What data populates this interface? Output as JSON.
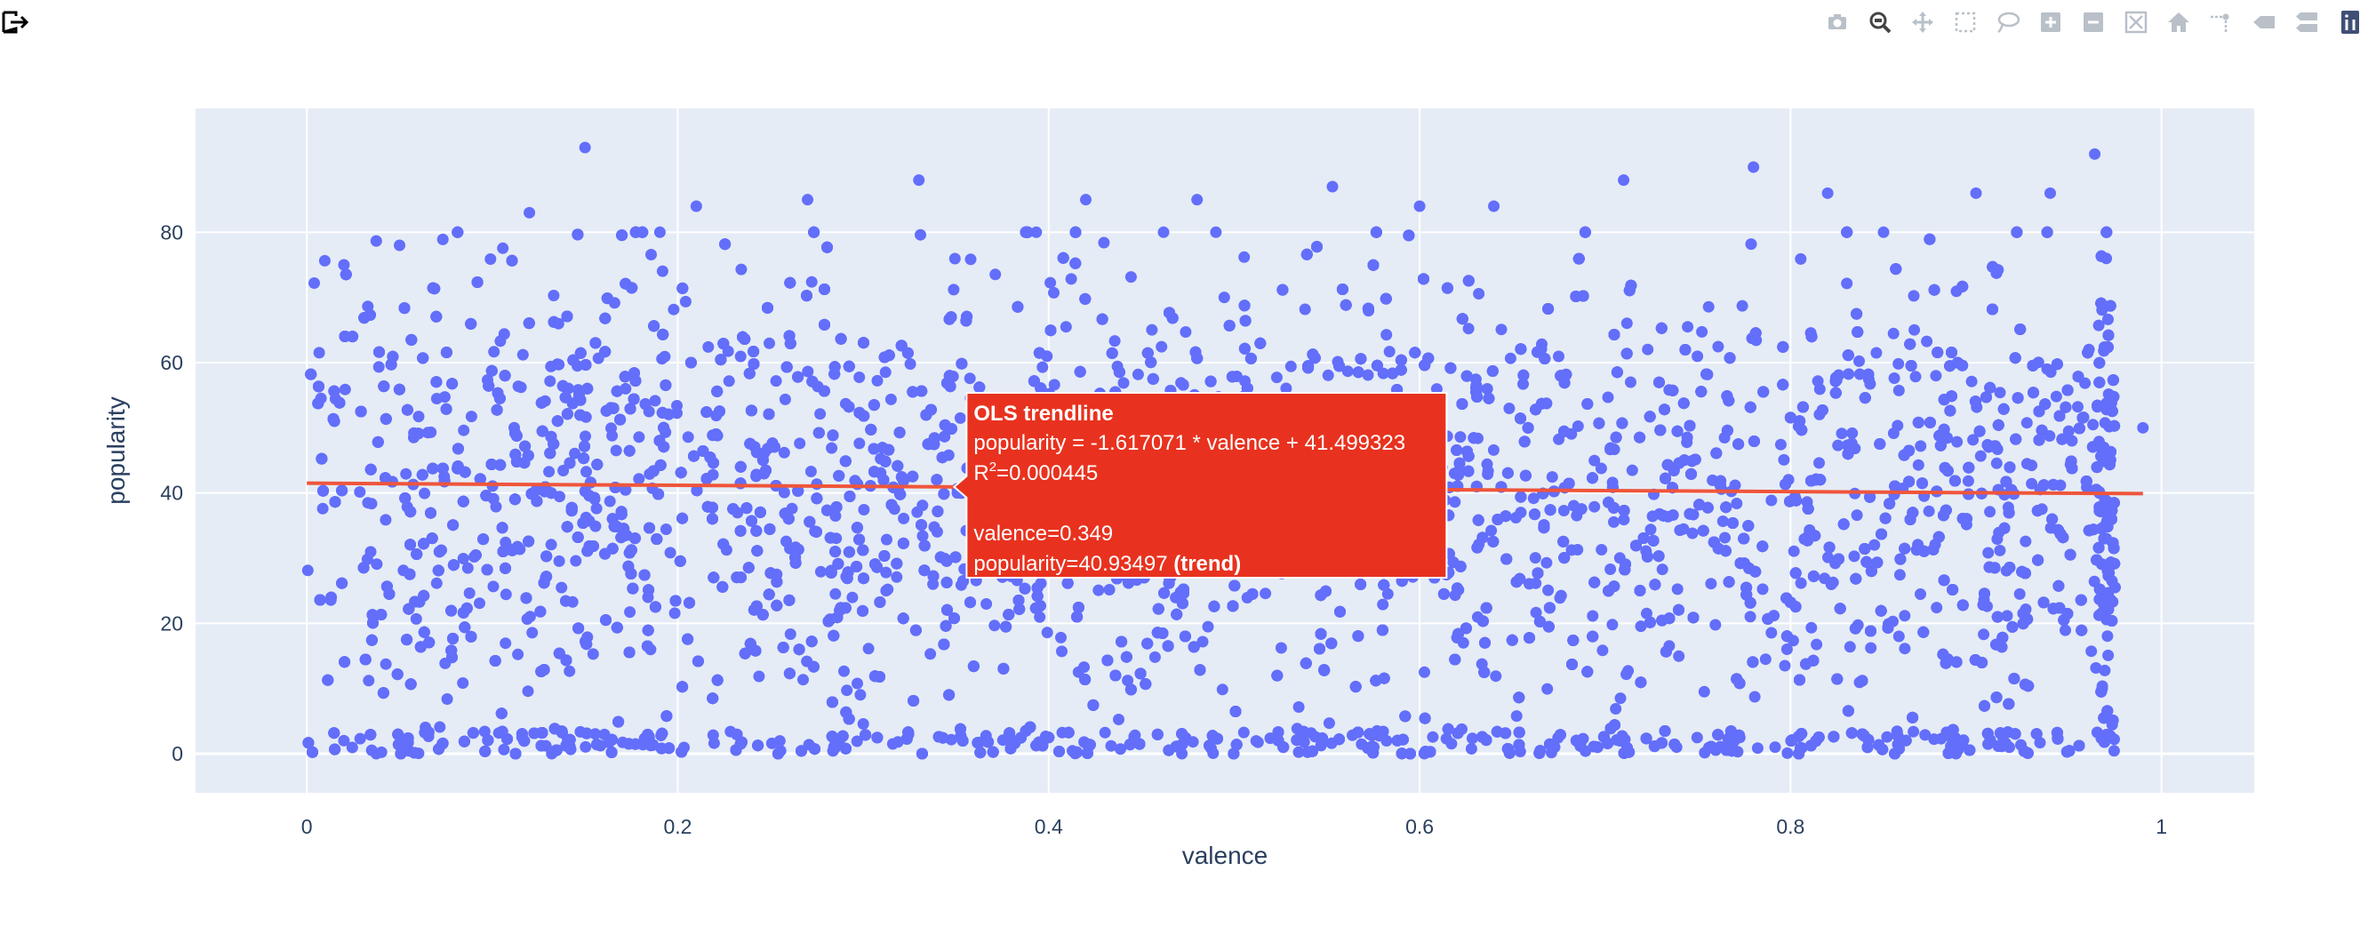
{
  "toolbar": {
    "export_icon": "export-icon",
    "buttons": [
      {
        "name": "camera-icon",
        "label": "Download plot as a png",
        "active": false
      },
      {
        "name": "zoom-icon",
        "label": "Zoom",
        "active": true
      },
      {
        "name": "pan-icon",
        "label": "Pan",
        "active": false
      },
      {
        "name": "box-select-icon",
        "label": "Box Select",
        "active": false
      },
      {
        "name": "lasso-select-icon",
        "label": "Lasso Select",
        "active": false
      },
      {
        "name": "zoom-in-icon",
        "label": "Zoom in",
        "active": false
      },
      {
        "name": "zoom-out-icon",
        "label": "Zoom out",
        "active": false
      },
      {
        "name": "autoscale-icon",
        "label": "Autoscale",
        "active": false
      },
      {
        "name": "home-icon",
        "label": "Reset axes",
        "active": false
      },
      {
        "name": "spike-lines-icon",
        "label": "Toggle Spike Lines",
        "active": false
      },
      {
        "name": "hover-closest-icon",
        "label": "Show closest data on hover",
        "active": false
      },
      {
        "name": "hover-compare-icon",
        "label": "Compare data on hover",
        "active": false
      },
      {
        "name": "plotly-logo-icon",
        "label": "Produced with Plotly",
        "active": false
      }
    ]
  },
  "colors": {
    "plot_bg": "#e5ecf6",
    "grid": "#ffffff",
    "marker": "#636efa",
    "trendline": "#ef553b",
    "hover_bg": "#e8321f",
    "text": "#2a3f5f",
    "toolbar_icon": "#b9c0c8",
    "toolbar_active": "#444444"
  },
  "chart_data": {
    "type": "scatter",
    "xlabel": "valence",
    "ylabel": "popularity",
    "xlim": [
      -0.06,
      1.05
    ],
    "ylim": [
      -6,
      99
    ],
    "x_ticks": [
      0,
      0.2,
      0.4,
      0.6,
      0.8,
      1
    ],
    "x_tick_labels": [
      "0",
      "0.2",
      "0.4",
      "0.6",
      "0.8",
      "1"
    ],
    "y_ticks": [
      0,
      20,
      40,
      60,
      80
    ],
    "y_tick_labels": [
      "0",
      "20",
      "40",
      "60",
      "80"
    ],
    "grid": true,
    "legend": "none",
    "series": [
      {
        "kind": "markers",
        "description_points_approx": "dense cloud of ~9000 points, valence 0–0.99, popularity 0–93",
        "x": [
          0.15,
          0.964,
          0.78,
          0.553,
          0.48,
          0.33,
          0.82,
          0.05,
          0.12,
          0.27,
          0.42,
          0.64,
          0.71,
          0.9,
          0.94,
          0.02,
          0.99,
          0.02,
          0.21,
          0.6
        ],
        "y": [
          93,
          92,
          90,
          87,
          85,
          88,
          86,
          78,
          83,
          85,
          85,
          84,
          88,
          86,
          86,
          2,
          50,
          75,
          84,
          84
        ]
      },
      {
        "kind": "ols-trendline",
        "x": [
          0.0,
          0.99
        ],
        "y": [
          41.499323,
          39.898423
        ]
      }
    ],
    "hover": {
      "title": "OLS trendline",
      "line1": "popularity = -1.617071 * valence + 41.499323",
      "r2_prefix": "R",
      "r2_sup": "2",
      "r2_value": "=0.000445",
      "line_x": "valence=0.349",
      "line_y": "popularity=40.93497",
      "line_y_suffix": "(trend)",
      "at_x": 0.349,
      "at_y": 40.93497
    }
  }
}
